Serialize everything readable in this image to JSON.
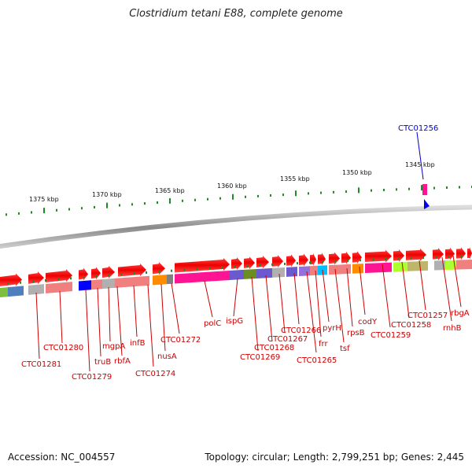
{
  "title": "Clostridium tetani E88, complete genome",
  "footer": {
    "accession": "Accession: NC_004557",
    "summary": "Topology: circular; Length: 2,799,251 bp; Genes: 2,445"
  },
  "colors": {
    "gene": "#ee1111",
    "label": "#cc0000",
    "highlight": "#0000cc",
    "tick": "#228822",
    "backbone": "#999999"
  },
  "ruler_labels": [
    {
      "text": "1375 kbp",
      "kbp": 1375
    },
    {
      "text": "1370 kbp",
      "kbp": 1370
    },
    {
      "text": "1365 kbp",
      "kbp": 1365
    },
    {
      "text": "1360 kbp",
      "kbp": 1360
    },
    {
      "text": "1355 kbp",
      "kbp": 1355
    },
    {
      "text": "1350 kbp",
      "kbp": 1350
    },
    {
      "text": "1345 kbp",
      "kbp": 1345
    }
  ],
  "highlighted_gene": {
    "name": "CTC01256"
  },
  "gene_labels": [
    "CTC01281",
    "CTC01280",
    "CTC01279",
    "truB",
    "mgpA",
    "rbfA",
    "infB",
    "CTC01274",
    "nusA",
    "CTC01272",
    "polC",
    "ispG",
    "CTC01269",
    "CTC01268",
    "CTC01267",
    "CTC01266",
    "CTC01265",
    "frr",
    "pyrH",
    "tsf",
    "rpsB",
    "codY",
    "CTC01259",
    "CTC01258",
    "CTC01257",
    "rnhB",
    "rbgA"
  ],
  "functional_categories": [
    "#7fbf3f",
    "#4f7fbf",
    "#b0b0b0",
    "#f08080",
    "#0000ff",
    "#f08080",
    "#b0b0b0",
    "#f08080",
    "#ff8c00",
    "#808080",
    "#ff1493",
    "#6a5acd",
    "#6b8e23",
    "#6a5acd",
    "#b0b0b0",
    "#6a5acd",
    "#9370db",
    "#f08080",
    "#00bfff",
    "#f08080",
    "#f08080",
    "#ff8c00",
    "#ff1493",
    "#adff2f",
    "#bdb76b",
    "#b0b0b0",
    "#adff2f",
    "#f08080"
  ]
}
